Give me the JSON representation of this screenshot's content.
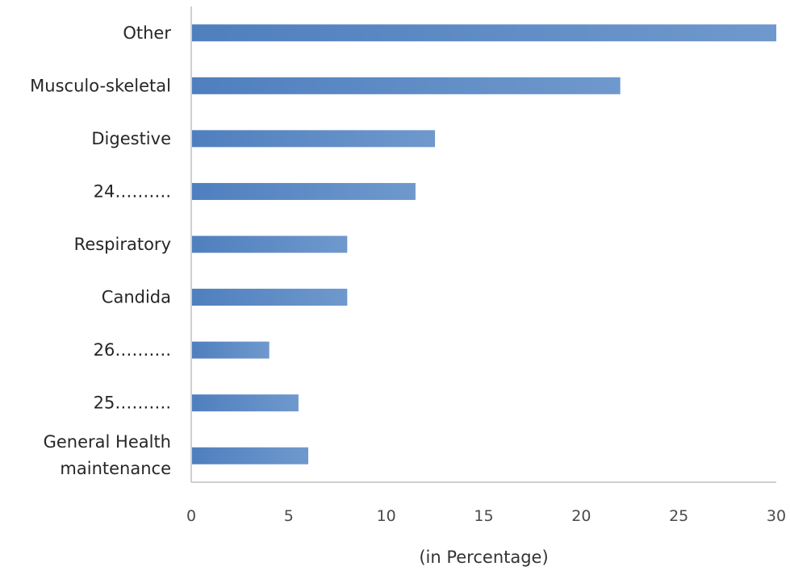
{
  "chart_data": {
    "type": "bar",
    "orientation": "horizontal",
    "categories": [
      "Other",
      "Musculo-skeletal",
      "Digestive",
      "24……….",
      "Respiratory",
      "Candida",
      "26……….",
      "25……….",
      "General Health maintenance"
    ],
    "values": [
      30,
      22,
      12.5,
      11.5,
      8,
      8,
      4,
      5.5,
      6
    ],
    "xlabel": "(in Percentage)",
    "ylabel": "",
    "title": "",
    "xlim": [
      0,
      30
    ],
    "xticks": [
      "0",
      "5",
      "10",
      "15",
      "20",
      "25",
      "30"
    ],
    "grid": false,
    "legend": "none",
    "bar_color": "#6c96cc",
    "bar_color_dark": "#4f7fbe"
  }
}
